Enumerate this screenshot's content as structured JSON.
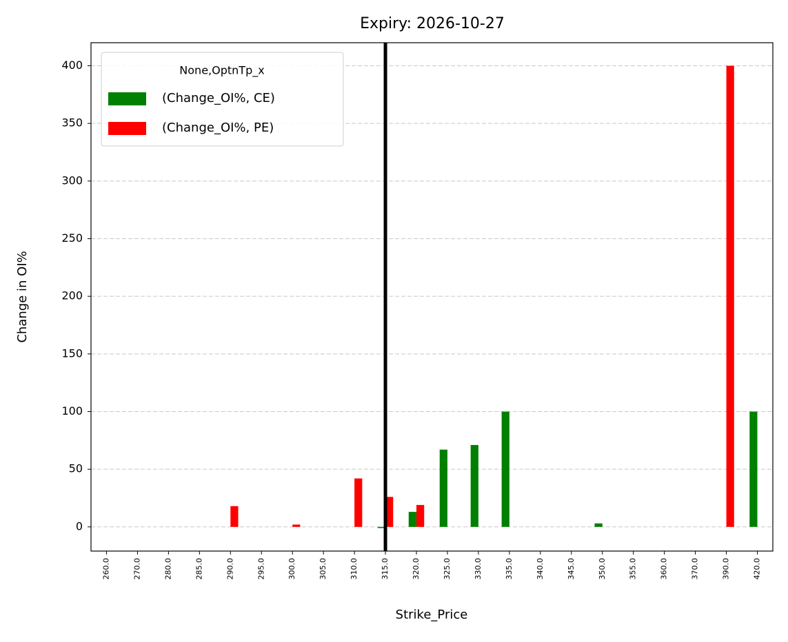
{
  "chart_data": {
    "type": "bar",
    "title": "Expiry: 2026-10-27",
    "x_label": "Strike_Price",
    "y_label": "Change in OI%",
    "categories": [
      "260.0",
      "270.0",
      "280.0",
      "285.0",
      "290.0",
      "295.0",
      "300.0",
      "305.0",
      "310.0",
      "315.0",
      "320.0",
      "325.0",
      "330.0",
      "335.0",
      "340.0",
      "345.0",
      "350.0",
      "355.0",
      "360.0",
      "370.0",
      "390.0",
      "420.0"
    ],
    "series": [
      {
        "name": "(Change_OI%, CE)",
        "color": "#008000",
        "values": [
          null,
          null,
          null,
          null,
          null,
          null,
          null,
          null,
          null,
          -1,
          13,
          67,
          71,
          100,
          null,
          null,
          3,
          null,
          null,
          null,
          null,
          100
        ]
      },
      {
        "name": "(Change_OI%, PE)",
        "color": "#ff0000",
        "values": [
          null,
          null,
          null,
          null,
          18,
          null,
          2,
          null,
          42,
          26,
          19,
          null,
          null,
          null,
          null,
          null,
          null,
          null,
          null,
          null,
          400,
          null
        ]
      }
    ],
    "legend_title": "None,OptnTp_x",
    "legend": "upper left",
    "vline": 315,
    "vline_color": "#000000",
    "ylim": [
      -21,
      420
    ],
    "yticks": [
      0,
      50,
      100,
      150,
      200,
      250,
      300,
      350,
      400
    ],
    "grid": true
  }
}
